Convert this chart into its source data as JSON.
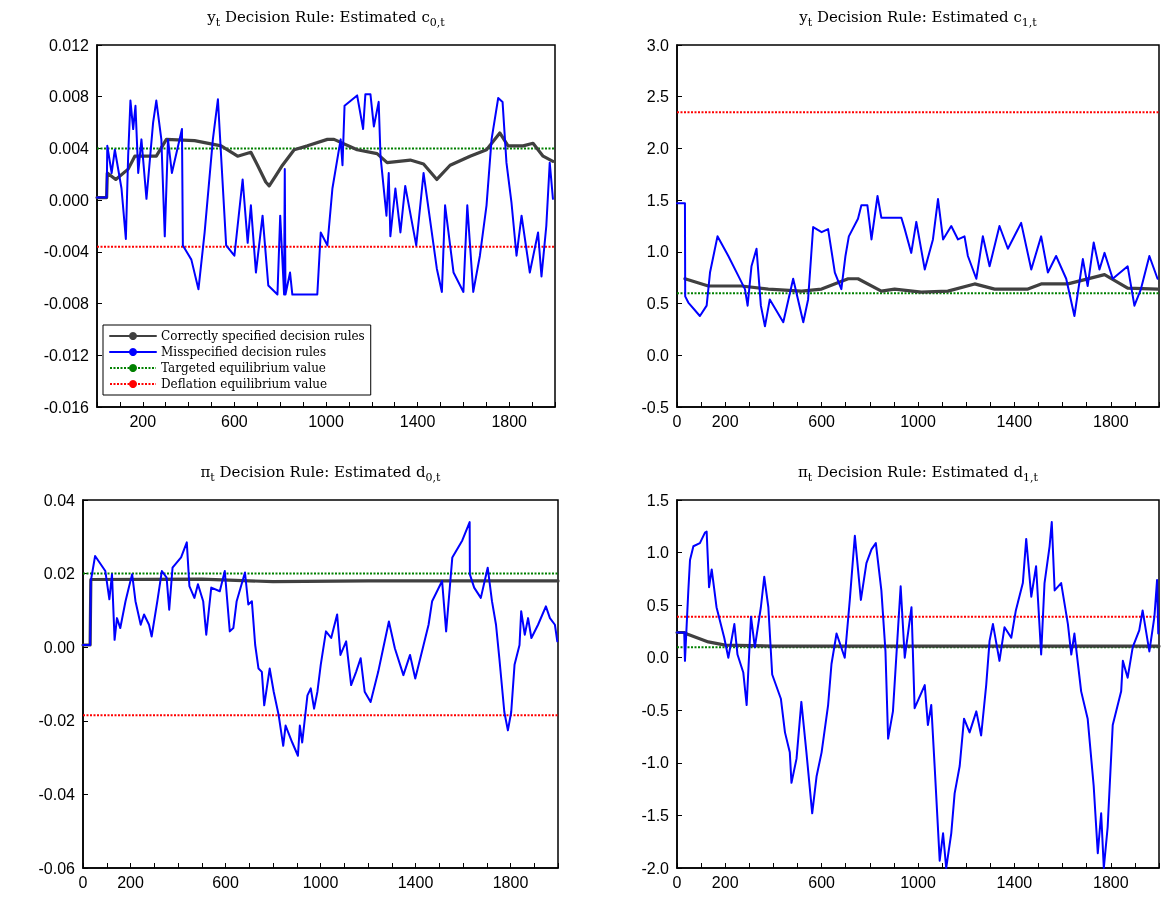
{
  "chart_data": [
    {
      "type": "line",
      "title": "y$_{t}$ Decision Rule: Estimated c$_{0,t}$",
      "xlim": [
        0,
        2000
      ],
      "xticks": [
        {
          "value": 0,
          "label": null
        },
        {
          "value": 100,
          "label": null
        },
        200,
        {
          "value": 300,
          "label": null
        },
        {
          "value": 400,
          "label": null
        },
        {
          "value": 500,
          "label": null
        },
        600,
        {
          "value": 700,
          "label": null
        },
        {
          "value": 800,
          "label": null
        },
        {
          "value": 900,
          "label": null
        },
        1000,
        {
          "value": 1100,
          "label": null
        },
        {
          "value": 1200,
          "label": null
        },
        {
          "value": 1300,
          "label": null
        },
        1400,
        {
          "value": 1500,
          "label": null
        },
        {
          "value": 1600,
          "label": null
        },
        {
          "value": 1700,
          "label": null
        },
        1800,
        {
          "value": 1900,
          "label": null
        },
        {
          "value": 2000,
          "label": null
        }
      ],
      "ylim": [
        -0.016,
        0.012
      ],
      "yticks": [
        -0.016,
        -0.012,
        -0.008,
        -0.004,
        {
          "value": 0,
          "label": "0.000"
        },
        0.004,
        0.008,
        0.012
      ],
      "legend": "bottom left",
      "marker": "none",
      "series": [
        {
          "name": "Correctly specified decision rules",
          "color": "#404040",
          "x": [
            0,
            42,
            45,
            82,
            136,
            165,
            259,
            303,
            426,
            542,
            614,
            672,
            701,
            737,
            752,
            781,
            810,
            861,
            919,
            1006,
            1035,
            1136,
            1223,
            1267,
            1368,
            1426,
            1484,
            1542,
            1629,
            1701,
            1759,
            1795,
            1861,
            1904,
            1948,
            1991
          ],
          "values": [
            0.0002,
            0.0002,
            0.0021,
            0.0016,
            0.0024,
            0.0034,
            0.0034,
            0.0047,
            0.0046,
            0.0042,
            0.0034,
            0.0037,
            0.0027,
            0.0014,
            0.0011,
            0.0019,
            0.0027,
            0.0039,
            0.0042,
            0.0047,
            0.0047,
            0.0039,
            0.0036,
            0.0029,
            0.0031,
            0.0028,
            0.0016,
            0.0027,
            0.0034,
            0.0039,
            0.0052,
            0.0042,
            0.0042,
            0.0044,
            0.0034,
            0.003
          ]
        },
        {
          "name": "Misspecified decision rules",
          "color": "#0000ff",
          "x": [
            0,
            42,
            45,
            64,
            78,
            107,
            126,
            136,
            146,
            158,
            168,
            180,
            194,
            216,
            245,
            259,
            281,
            296,
            310,
            327,
            371,
            375,
            412,
            443,
            470,
            506,
            528,
            542,
            564,
            600,
            636,
            658,
            672,
            694,
            723,
            748,
            788,
            800,
            817,
            820,
            823,
            843,
            853,
            962,
            977,
            1006,
            1028,
            1064,
            1072,
            1081,
            1136,
            1162,
            1172,
            1194,
            1209,
            1230,
            1238,
            1264,
            1274,
            1281,
            1303,
            1325,
            1346,
            1394,
            1426,
            1484,
            1506,
            1520,
            1557,
            1600,
            1617,
            1643,
            1672,
            1701,
            1723,
            1752,
            1771,
            1788,
            1810,
            1832,
            1854,
            1890,
            1926,
            1941,
            1962,
            1977,
            1991
          ],
          "values": [
            0.0002,
            0.0002,
            0.0042,
            0.0021,
            0.0039,
            0.0009,
            -0.003,
            0.0034,
            0.0077,
            0.0055,
            0.0073,
            0.0021,
            0.0047,
            0.0001,
            0.006,
            0.0077,
            0.0047,
            -0.0028,
            0.0047,
            0.0021,
            0.0055,
            -0.0035,
            -0.0046,
            -0.0069,
            -0.0025,
            0.0047,
            0.0078,
            0.0034,
            -0.0035,
            -0.0043,
            0.0016,
            -0.0033,
            -0.0004,
            -0.0056,
            -0.0012,
            -0.0066,
            -0.0073,
            -0.0012,
            -0.0073,
            0.0024,
            -0.0073,
            -0.0056,
            -0.0073,
            -0.0073,
            -0.0025,
            -0.0035,
            0.0009,
            0.0047,
            0.0027,
            0.0073,
            0.0081,
            0.0055,
            0.0082,
            0.0082,
            0.0057,
            0.0076,
            0.0034,
            -0.0012,
            0.0021,
            -0.0028,
            0.0009,
            -0.0025,
            0.0011,
            -0.0035,
            0.0021,
            -0.0053,
            -0.0071,
            -0.0004,
            -0.0056,
            -0.0071,
            -0.0004,
            -0.0071,
            -0.0043,
            -0.0004,
            0.0047,
            0.0079,
            0.0076,
            0.0029,
            -0.0002,
            -0.0043,
            -0.0012,
            -0.0056,
            -0.0025,
            -0.0059,
            -0.002,
            0.0029,
            0.0001
          ]
        }
      ],
      "ref_lines": [
        {
          "axis": "y",
          "value": 0.004,
          "label": "Targeted equilibrium value",
          "color": "#008000",
          "line_style": "dotted"
        },
        {
          "axis": "y",
          "value": -0.0036,
          "label": "Deflation equilibrium value",
          "color": "#ff0000",
          "line_style": "dotted"
        }
      ]
    },
    {
      "type": "line",
      "title": "y$_{t}$ Decision Rule: Estimated c$_{1,t}$",
      "xlim": [
        0,
        2000
      ],
      "xticks": [
        0,
        {
          "value": 100,
          "label": null
        },
        200,
        {
          "value": 300,
          "label": null
        },
        {
          "value": 400,
          "label": null
        },
        {
          "value": 500,
          "label": null
        },
        600,
        {
          "value": 700,
          "label": null
        },
        {
          "value": 800,
          "label": null
        },
        {
          "value": 900,
          "label": null
        },
        1000,
        {
          "value": 1100,
          "label": null
        },
        {
          "value": 1200,
          "label": null
        },
        {
          "value": 1300,
          "label": null
        },
        1400,
        {
          "value": 1500,
          "label": null
        },
        {
          "value": 1600,
          "label": null
        },
        {
          "value": 1700,
          "label": null
        },
        1800,
        {
          "value": 1900,
          "label": null
        },
        {
          "value": 2000,
          "label": null
        }
      ],
      "ylim": [
        -0.5,
        3
      ],
      "yticks": [
        -0.5,
        {
          "value": 0,
          "label": "0.0"
        },
        0.5,
        {
          "value": 1,
          "label": "1.0"
        },
        1.5,
        {
          "value": 2,
          "label": "2.0"
        },
        2.5,
        {
          "value": 3,
          "label": "3.0"
        }
      ],
      "marker": "none",
      "series": [
        {
          "color": "#404040",
          "x": [
            33,
            130,
            268,
            379,
            517,
            600,
            710,
            751,
            848,
            903,
            1014,
            1124,
            1235,
            1318,
            1456,
            1511,
            1622,
            1774,
            1870,
            1994
          ],
          "values": [
            0.74,
            0.67,
            0.67,
            0.64,
            0.62,
            0.64,
            0.74,
            0.74,
            0.62,
            0.64,
            0.61,
            0.62,
            0.69,
            0.64,
            0.64,
            0.69,
            0.69,
            0.78,
            0.65,
            0.64
          ]
        },
        {
          "color": "#0000ff",
          "x": [
            0,
            33,
            34,
            47,
            95,
            123,
            137,
            168,
            213,
            254,
            282,
            293,
            309,
            330,
            348,
            365,
            385,
            441,
            482,
            524,
            544,
            565,
            600,
            627,
            655,
            682,
            699,
            713,
            751,
            765,
            790,
            807,
            832,
            848,
            931,
            945,
            972,
            993,
            1028,
            1062,
            1083,
            1104,
            1138,
            1166,
            1193,
            1207,
            1242,
            1269,
            1297,
            1338,
            1373,
            1428,
            1470,
            1511,
            1539,
            1573,
            1615,
            1649,
            1684,
            1704,
            1729,
            1753,
            1774,
            1808,
            1870,
            1898,
            1925,
            1960,
            1994
          ],
          "values": [
            1.47,
            1.47,
            0.57,
            0.51,
            0.38,
            0.48,
            0.8,
            1.15,
            0.96,
            0.77,
            0.64,
            0.48,
            0.86,
            1.03,
            0.48,
            0.28,
            0.54,
            0.32,
            0.74,
            0.32,
            0.54,
            1.24,
            1.19,
            1.22,
            0.8,
            0.64,
            0.96,
            1.15,
            1.32,
            1.45,
            1.45,
            1.12,
            1.54,
            1.33,
            1.33,
            1.22,
            0.99,
            1.29,
            0.83,
            1.12,
            1.51,
            1.12,
            1.25,
            1.12,
            1.15,
            0.96,
            0.74,
            1.15,
            0.86,
            1.25,
            1.03,
            1.28,
            0.83,
            1.15,
            0.8,
            0.96,
            0.74,
            0.38,
            0.93,
            0.67,
            1.09,
            0.83,
            0.99,
            0.74,
            0.86,
            0.48,
            0.64,
            0.96,
            0.74
          ]
        }
      ],
      "ref_lines": [
        {
          "axis": "y",
          "value": 0.6,
          "color": "#008000",
          "line_style": "dotted"
        },
        {
          "axis": "y",
          "value": 2.35,
          "color": "#ff0000",
          "line_style": "dotted"
        }
      ]
    },
    {
      "type": "line",
      "title": "π$_{t}$ Decision Rule: Estimated d$_{0,t}$",
      "xlim": [
        0,
        2000
      ],
      "xticks": [
        0,
        {
          "value": 100,
          "label": null
        },
        200,
        {
          "value": 300,
          "label": null
        },
        {
          "value": 400,
          "label": null
        },
        {
          "value": 500,
          "label": null
        },
        600,
        {
          "value": 700,
          "label": null
        },
        {
          "value": 800,
          "label": null
        },
        {
          "value": 900,
          "label": null
        },
        1000,
        {
          "value": 1100,
          "label": null
        },
        {
          "value": 1200,
          "label": null
        },
        {
          "value": 1300,
          "label": null
        },
        1400,
        {
          "value": 1500,
          "label": null
        },
        {
          "value": 1600,
          "label": null
        },
        {
          "value": 1700,
          "label": null
        },
        1800,
        {
          "value": 1900,
          "label": null
        },
        {
          "value": 2000,
          "label": null
        }
      ],
      "ylim": [
        -0.06,
        0.04
      ],
      "yticks": [
        -0.06,
        -0.04,
        -0.02,
        {
          "value": 0,
          "label": "0.00"
        },
        0.02,
        0.04
      ],
      "marker": "none",
      "series": [
        {
          "color": "#404040",
          "x": [
            0,
            30,
            33,
            500,
            800,
            1200,
            2000
          ],
          "values": [
            0.0006,
            0.0006,
            0.0184,
            0.0185,
            0.0178,
            0.018,
            0.018
          ]
        },
        {
          "color": "#0000ff",
          "x": [
            0,
            30,
            33,
            51,
            94,
            111,
            122,
            133,
            143,
            157,
            179,
            193,
            207,
            221,
            243,
            257,
            278,
            289,
            313,
            332,
            352,
            363,
            377,
            413,
            437,
            448,
            469,
            484,
            506,
            519,
            540,
            576,
            597,
            618,
            633,
            647,
            682,
            696,
            711,
            725,
            739,
            753,
            763,
            786,
            803,
            824,
            843,
            853,
            881,
            905,
            913,
            923,
            945,
            959,
            973,
            987,
            1001,
            1023,
            1045,
            1070,
            1084,
            1108,
            1129,
            1150,
            1169,
            1186,
            1211,
            1243,
            1264,
            1288,
            1313,
            1349,
            1377,
            1399,
            1434,
            1455,
            1470,
            1512,
            1529,
            1555,
            1597,
            1628,
            1629,
            1647,
            1675,
            1704,
            1722,
            1739,
            1753,
            1774,
            1789,
            1803,
            1817,
            1838,
            1845,
            1860,
            1874,
            1888,
            1916,
            1949,
            1966,
            1987,
            1997
          ],
          "values": [
            0.0006,
            0.0006,
            0.018,
            0.0248,
            0.0207,
            0.013,
            0.0198,
            0.002,
            0.0079,
            0.0052,
            0.0125,
            0.0162,
            0.0198,
            0.0125,
            0.0061,
            0.0089,
            0.0061,
            0.0029,
            0.0125,
            0.0207,
            0.0189,
            0.0102,
            0.0216,
            0.0244,
            0.0285,
            0.0166,
            0.0134,
            0.0171,
            0.0125,
            0.0034,
            0.0162,
            0.0152,
            0.0207,
            0.0043,
            0.0052,
            0.0125,
            0.0203,
            0.0116,
            0.0125,
            0.0006,
            -0.0058,
            -0.0067,
            -0.0158,
            -0.0058,
            -0.0121,
            -0.0185,
            -0.0268,
            -0.0213,
            -0.0259,
            -0.0295,
            -0.0213,
            -0.0259,
            -0.0131,
            -0.0112,
            -0.0167,
            -0.0121,
            -0.0048,
            0.0043,
            0.0025,
            0.0089,
            -0.0021,
            0.0016,
            -0.0103,
            -0.0067,
            -0.003,
            -0.0121,
            -0.0149,
            -0.0067,
            -0.0003,
            0.007,
            -0.0003,
            -0.0076,
            -0.0021,
            -0.0085,
            0.0006,
            0.0061,
            0.0125,
            0.018,
            0.0043,
            0.0244,
            0.029,
            0.034,
            0.0198,
            0.0162,
            0.0134,
            0.0216,
            0.0125,
            0.0061,
            -0.003,
            -0.0176,
            -0.0226,
            -0.0176,
            -0.0048,
            0.0006,
            0.0098,
            0.0034,
            0.0079,
            0.0025,
            0.0061,
            0.0111,
            0.0079,
            0.0061,
            0.0016
          ]
        }
      ],
      "ref_lines": [
        {
          "axis": "y",
          "value": 0.02,
          "color": "#008000",
          "line_style": "dotted"
        },
        {
          "axis": "y",
          "value": -0.0185,
          "color": "#ff0000",
          "line_style": "dotted"
        }
      ]
    },
    {
      "type": "line",
      "title": "π$_{t}$ Decision Rule: Estimated d$_{1,t}$",
      "xlim": [
        0,
        2000
      ],
      "xticks": [
        0,
        {
          "value": 100,
          "label": null
        },
        200,
        {
          "value": 300,
          "label": null
        },
        {
          "value": 400,
          "label": null
        },
        {
          "value": 500,
          "label": null
        },
        600,
        {
          "value": 700,
          "label": null
        },
        {
          "value": 800,
          "label": null
        },
        {
          "value": 900,
          "label": null
        },
        1000,
        {
          "value": 1100,
          "label": null
        },
        {
          "value": 1200,
          "label": null
        },
        {
          "value": 1300,
          "label": null
        },
        1400,
        {
          "value": 1500,
          "label": null
        },
        {
          "value": 1600,
          "label": null
        },
        {
          "value": 1700,
          "label": null
        },
        1800,
        {
          "value": 1900,
          "label": null
        },
        {
          "value": 2000,
          "label": null
        }
      ],
      "ylim": [
        -2,
        1.5
      ],
      "yticks": [
        {
          "value": -2,
          "label": "-2.0"
        },
        -1.5,
        {
          "value": -1,
          "label": "-1.0"
        },
        -0.5,
        {
          "value": 0,
          "label": "0.0"
        },
        0.5,
        {
          "value": 1,
          "label": "1.0"
        },
        1.5
      ],
      "marker": "none",
      "series": [
        {
          "color": "#404040",
          "x": [
            0,
            30,
            47,
            130,
            200,
            400,
            2000
          ],
          "values": [
            0.24,
            0.24,
            0.22,
            0.15,
            0.12,
            0.11,
            0.11
          ]
        },
        {
          "color": "#0000ff",
          "x": [
            0,
            30,
            33,
            47,
            54,
            68,
            95,
            116,
            123,
            133,
            144,
            164,
            196,
            213,
            238,
            251,
            275,
            289,
            307,
            323,
            348,
            362,
            379,
            395,
            431,
            448,
            468,
            475,
            496,
            516,
            537,
            561,
            579,
            600,
            627,
            641,
            662,
            696,
            717,
            731,
            738,
            763,
            786,
            807,
            825,
            848,
            865,
            876,
            896,
            928,
            945,
            973,
            986,
            1028,
            1041,
            1055,
            1069,
            1090,
            1104,
            1117,
            1138,
            1152,
            1173,
            1191,
            1214,
            1242,
            1262,
            1283,
            1297,
            1311,
            1338,
            1359,
            1387,
            1406,
            1435,
            1449,
            1470,
            1490,
            1511,
            1525,
            1546,
            1555,
            1567,
            1594,
            1622,
            1636,
            1649,
            1677,
            1704,
            1729,
            1746,
            1760,
            1771,
            1787,
            1808,
            1843,
            1850,
            1870,
            1891,
            1918,
            1932,
            1960,
            1981,
            1992,
            1997
          ],
          "values": [
            0.24,
            0.24,
            -0.03,
            0.64,
            0.93,
            1.06,
            1.09,
            1.19,
            1.2,
            0.67,
            0.84,
            0.48,
            0.19,
            0,
            0.32,
            0.03,
            -0.14,
            -0.45,
            0.39,
            0.1,
            0.48,
            0.77,
            0.48,
            -0.16,
            -0.39,
            -0.71,
            -0.9,
            -1.19,
            -0.96,
            -0.42,
            -0.9,
            -1.48,
            -1.13,
            -0.9,
            -0.45,
            -0.06,
            0.23,
            0,
            0.55,
            0.96,
            1.16,
            0.55,
            0.9,
            1.03,
            1.09,
            0.64,
            0.06,
            -0.77,
            -0.51,
            0.68,
            0,
            0.48,
            -0.48,
            -0.26,
            -0.64,
            -0.45,
            -1.03,
            -1.93,
            -1.67,
            -2,
            -1.67,
            -1.29,
            -1.03,
            -0.58,
            -0.71,
            -0.51,
            -0.74,
            -0.26,
            0.16,
            0.32,
            -0.03,
            0.29,
            0.19,
            0.45,
            0.71,
            1.13,
            0.58,
            0.87,
            0.03,
            0.71,
            1.06,
            1.29,
            0.64,
            0.71,
            0.32,
            0.03,
            0.23,
            -0.32,
            -0.58,
            -1.22,
            -1.86,
            -1.48,
            -2,
            -1.61,
            -0.64,
            -0.32,
            -0.03,
            -0.19,
            0.1,
            0.26,
            0.45,
            0.06,
            0.39,
            0.74,
            0.23
          ]
        }
      ],
      "ref_lines": [
        {
          "axis": "y",
          "value": 0.1,
          "color": "#008000",
          "line_style": "dotted"
        },
        {
          "axis": "y",
          "value": 0.39,
          "color": "#ff0000",
          "line_style": "dotted"
        }
      ]
    }
  ]
}
